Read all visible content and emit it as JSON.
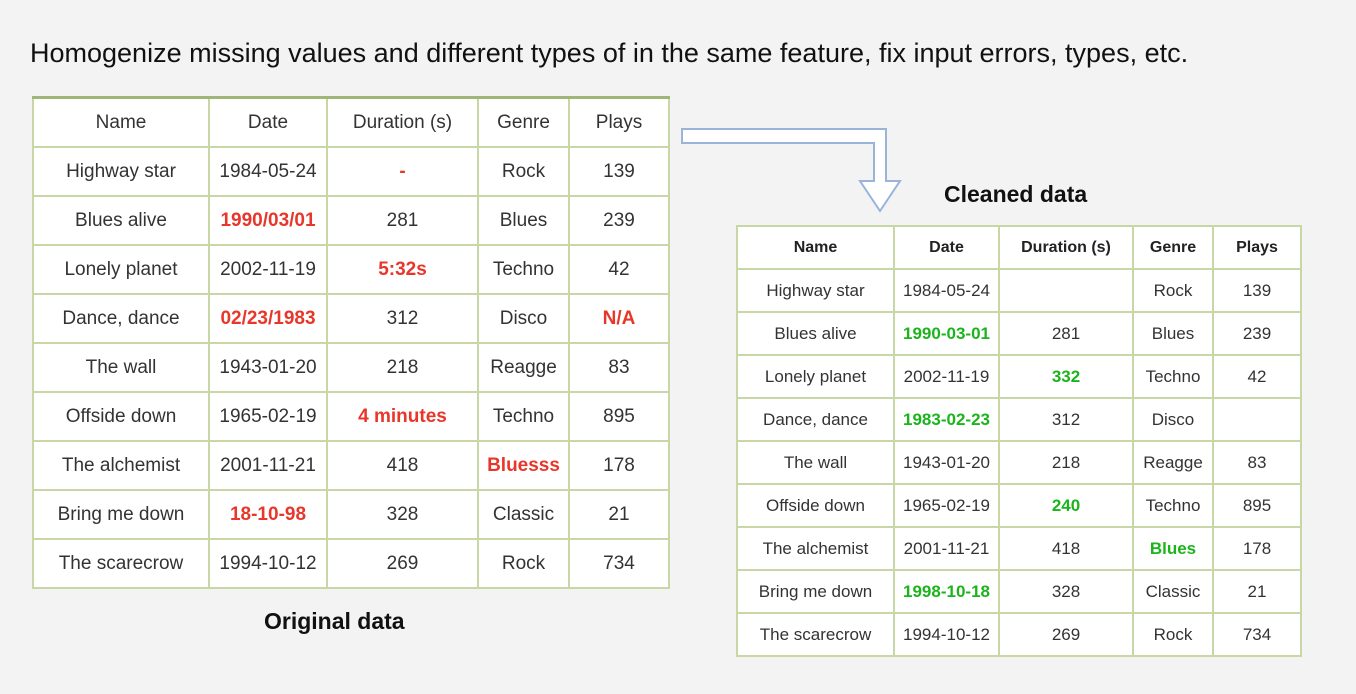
{
  "headline": "Homogenize missing values and different types of in the same feature, fix input errors, types, etc.",
  "original": {
    "caption": "Original data",
    "columns": [
      "Name",
      "Date",
      "Duration (s)",
      "Genre",
      "Plays"
    ],
    "rows": [
      [
        "Highway star",
        "1984-05-24",
        "-",
        "Rock",
        "139"
      ],
      [
        "Blues alive",
        "1990/03/01",
        "281",
        "Blues",
        "239"
      ],
      [
        "Lonely planet",
        "2002-11-19",
        "5:32s",
        "Techno",
        "42"
      ],
      [
        "Dance, dance",
        "02/23/1983",
        "312",
        "Disco",
        "N/A"
      ],
      [
        "The wall",
        "1943-01-20",
        "218",
        "Reagge",
        "83"
      ],
      [
        "Offside down",
        "1965-02-19",
        "4 minutes",
        "Techno",
        "895"
      ],
      [
        "The alchemist",
        "2001-11-21",
        "418",
        "Bluesss",
        "178"
      ],
      [
        "Bring me down",
        "18-10-98",
        "328",
        "Classic",
        "21"
      ],
      [
        "The scarecrow",
        "1994-10-12",
        "269",
        "Rock",
        "734"
      ]
    ],
    "highlight_color": "#e8372a",
    "highlighted_cells": [
      [
        0,
        2
      ],
      [
        1,
        1
      ],
      [
        2,
        2
      ],
      [
        3,
        1
      ],
      [
        3,
        4
      ],
      [
        5,
        2
      ],
      [
        6,
        3
      ],
      [
        7,
        1
      ]
    ]
  },
  "cleaned": {
    "caption": "Cleaned data",
    "columns": [
      "Name",
      "Date",
      "Duration (s)",
      "Genre",
      "Plays"
    ],
    "rows": [
      [
        "Highway star",
        "1984-05-24",
        "",
        "Rock",
        "139"
      ],
      [
        "Blues alive",
        "1990-03-01",
        "281",
        "Blues",
        "239"
      ],
      [
        "Lonely planet",
        "2002-11-19",
        "332",
        "Techno",
        "42"
      ],
      [
        "Dance, dance",
        "1983-02-23",
        "312",
        "Disco",
        ""
      ],
      [
        "The wall",
        "1943-01-20",
        "218",
        "Reagge",
        "83"
      ],
      [
        "Offside down",
        "1965-02-19",
        "240",
        "Techno",
        "895"
      ],
      [
        "The alchemist",
        "2001-11-21",
        "418",
        "Blues",
        "178"
      ],
      [
        "Bring me down",
        "1998-10-18",
        "328",
        "Classic",
        "21"
      ],
      [
        "The scarecrow",
        "1994-10-12",
        "269",
        "Rock",
        "734"
      ]
    ],
    "highlight_color": "#1cb41c",
    "highlighted_cells": [
      [
        1,
        1
      ],
      [
        2,
        2
      ],
      [
        3,
        1
      ],
      [
        5,
        2
      ],
      [
        6,
        3
      ],
      [
        7,
        1
      ]
    ]
  },
  "arrow_icon": "elbow-arrow-icon",
  "border_color": "#c9d7a6",
  "arrow_color": "#9ab3d9"
}
